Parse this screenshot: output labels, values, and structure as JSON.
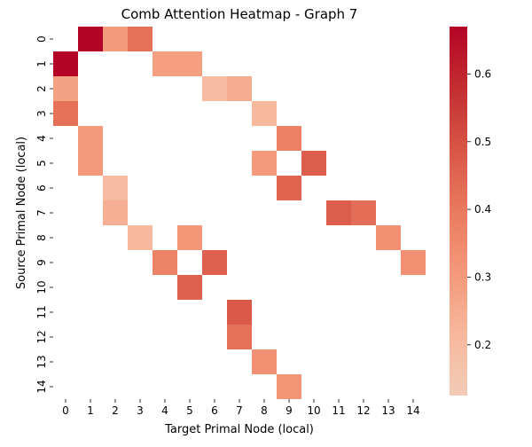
{
  "chart_data": {
    "type": "heatmap",
    "title": "Comb Attention Heatmap - Graph 7",
    "xlabel": "Target Primal Node (local)",
    "ylabel": "Source Primal Node (local)",
    "x_categories": [
      "0",
      "1",
      "2",
      "3",
      "4",
      "5",
      "6",
      "7",
      "8",
      "9",
      "10",
      "11",
      "12",
      "13",
      "14"
    ],
    "y_categories": [
      "0",
      "1",
      "2",
      "3",
      "4",
      "5",
      "6",
      "7",
      "8",
      "9",
      "10",
      "11",
      "12",
      "13",
      "14"
    ],
    "cells": [
      {
        "row": 0,
        "col": 1,
        "value": 0.67
      },
      {
        "row": 0,
        "col": 2,
        "value": 0.3
      },
      {
        "row": 0,
        "col": 3,
        "value": 0.42
      },
      {
        "row": 1,
        "col": 0,
        "value": 0.67
      },
      {
        "row": 1,
        "col": 4,
        "value": 0.29
      },
      {
        "row": 1,
        "col": 5,
        "value": 0.29
      },
      {
        "row": 2,
        "col": 0,
        "value": 0.28
      },
      {
        "row": 2,
        "col": 6,
        "value": 0.2
      },
      {
        "row": 2,
        "col": 7,
        "value": 0.25
      },
      {
        "row": 3,
        "col": 0,
        "value": 0.42
      },
      {
        "row": 3,
        "col": 8,
        "value": 0.21
      },
      {
        "row": 4,
        "col": 1,
        "value": 0.3
      },
      {
        "row": 4,
        "col": 9,
        "value": 0.38
      },
      {
        "row": 5,
        "col": 1,
        "value": 0.3
      },
      {
        "row": 5,
        "col": 8,
        "value": 0.3
      },
      {
        "row": 5,
        "col": 10,
        "value": 0.47
      },
      {
        "row": 6,
        "col": 2,
        "value": 0.2
      },
      {
        "row": 6,
        "col": 9,
        "value": 0.45
      },
      {
        "row": 7,
        "col": 2,
        "value": 0.24
      },
      {
        "row": 7,
        "col": 11,
        "value": 0.47
      },
      {
        "row": 7,
        "col": 12,
        "value": 0.43
      },
      {
        "row": 8,
        "col": 3,
        "value": 0.21
      },
      {
        "row": 8,
        "col": 5,
        "value": 0.31
      },
      {
        "row": 8,
        "col": 13,
        "value": 0.33
      },
      {
        "row": 9,
        "col": 4,
        "value": 0.37
      },
      {
        "row": 9,
        "col": 6,
        "value": 0.46
      },
      {
        "row": 9,
        "col": 14,
        "value": 0.33
      },
      {
        "row": 10,
        "col": 5,
        "value": 0.46
      },
      {
        "row": 11,
        "col": 7,
        "value": 0.48
      },
      {
        "row": 12,
        "col": 7,
        "value": 0.42
      },
      {
        "row": 13,
        "col": 8,
        "value": 0.33
      },
      {
        "row": 14,
        "col": 9,
        "value": 0.32
      }
    ],
    "colorbar": {
      "vmin": 0.125,
      "vmax": 0.67,
      "ticks": [
        0.2,
        0.3,
        0.4,
        0.5,
        0.6
      ],
      "tick_labels": [
        "0.2",
        "0.3",
        "0.4",
        "0.5",
        "0.6"
      ],
      "colormap": "coolwarm (upper half)",
      "stops": [
        "#f2cbb7",
        "#f7b89c",
        "#f4987a",
        "#e97a5f",
        "#d85646",
        "#c32e31",
        "#b40426"
      ]
    },
    "missing_color": "#ffffff",
    "grid": false
  }
}
